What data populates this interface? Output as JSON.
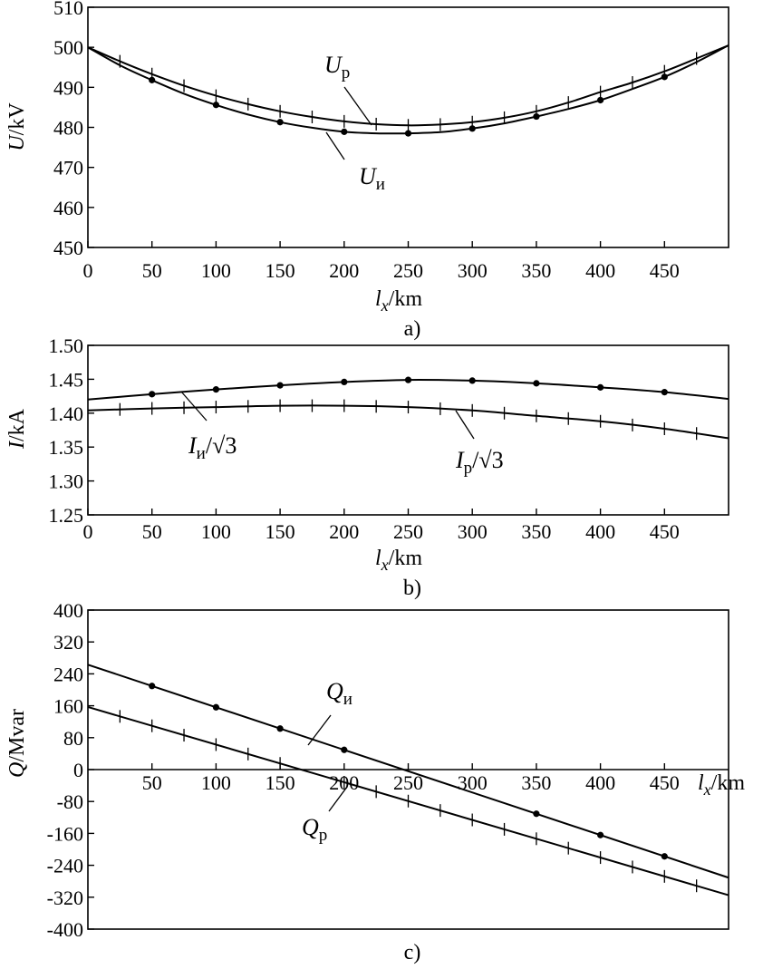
{
  "chart_data": [
    {
      "type": "line",
      "panel_label": "a)",
      "xlabel": "l_x/km",
      "xlabel_main": "l",
      "xlabel_sub": "x",
      "xlabel_unit": "/km",
      "ylabel": "U/kV",
      "xlim": [
        0,
        500
      ],
      "ylim": [
        450,
        510
      ],
      "xticks": [
        0,
        50,
        100,
        150,
        200,
        250,
        300,
        350,
        400,
        450
      ],
      "yticks": [
        450,
        460,
        470,
        480,
        490,
        500,
        510
      ],
      "grid": false,
      "series": [
        {
          "name": "U_р",
          "label_main": "U",
          "label_sub": "р",
          "marker": "tick",
          "x": [
            0,
            25,
            50,
            75,
            100,
            125,
            150,
            175,
            200,
            225,
            250,
            275,
            300,
            325,
            350,
            375,
            400,
            425,
            450,
            475,
            500
          ],
          "y": [
            500.0,
            496.5,
            493.3,
            490.4,
            487.9,
            485.8,
            484.0,
            482.6,
            481.5,
            480.8,
            480.5,
            480.7,
            481.3,
            482.4,
            484.0,
            486.2,
            488.8,
            491.2,
            494.0,
            497.2,
            500.5
          ],
          "markers_x": [
            25,
            50,
            75,
            100,
            125,
            150,
            175,
            200,
            225,
            250,
            275,
            300,
            325,
            350,
            375,
            400,
            425,
            450,
            475
          ]
        },
        {
          "name": "U_и",
          "label_main": "U",
          "label_sub": "и",
          "marker": "dot",
          "x": [
            0,
            25,
            50,
            75,
            100,
            125,
            150,
            175,
            200,
            225,
            250,
            275,
            300,
            325,
            350,
            375,
            400,
            425,
            450,
            475,
            500
          ],
          "y": [
            500.0,
            495.5,
            491.8,
            488.4,
            485.6,
            483.2,
            481.3,
            479.9,
            478.9,
            478.5,
            478.5,
            478.8,
            479.7,
            481.0,
            482.7,
            484.6,
            486.8,
            489.6,
            492.6,
            496.3,
            500.5
          ],
          "markers_x": [
            50,
            100,
            150,
            200,
            250,
            300,
            350,
            400,
            450
          ]
        }
      ]
    },
    {
      "type": "line",
      "panel_label": "b)",
      "xlabel": "l_x/km",
      "xlabel_main": "l",
      "xlabel_sub": "x",
      "xlabel_unit": "/km",
      "ylabel": "I/kA",
      "xlim": [
        0,
        500
      ],
      "ylim": [
        1.25,
        1.5
      ],
      "xticks": [
        0,
        50,
        100,
        150,
        200,
        250,
        300,
        350,
        400,
        450
      ],
      "yticks": [
        1.25,
        1.3,
        1.35,
        1.4,
        1.45,
        1.5
      ],
      "ytick_labels": [
        "1.25",
        "1.30",
        "1.35",
        "1.40",
        "1.45",
        "1.50"
      ],
      "grid": false,
      "series": [
        {
          "name": "I_и/√3",
          "label_main": "I",
          "label_sub": "и",
          "label_tail": "/√3",
          "marker": "dot",
          "x": [
            0,
            50,
            100,
            150,
            200,
            250,
            300,
            350,
            400,
            450,
            500
          ],
          "y": [
            1.42,
            1.428,
            1.435,
            1.441,
            1.446,
            1.449,
            1.448,
            1.444,
            1.438,
            1.431,
            1.421
          ],
          "markers_x": [
            50,
            100,
            150,
            200,
            250,
            300,
            350,
            400,
            450
          ]
        },
        {
          "name": "I_р/√3",
          "label_main": "I",
          "label_sub": "р",
          "label_tail": "/√3",
          "marker": "tick",
          "x": [
            0,
            50,
            100,
            150,
            200,
            250,
            300,
            350,
            400,
            450,
            500
          ],
          "y": [
            1.404,
            1.407,
            1.409,
            1.411,
            1.411,
            1.409,
            1.404,
            1.396,
            1.388,
            1.377,
            1.363
          ],
          "markers_x": [
            25,
            50,
            75,
            100,
            125,
            150,
            175,
            200,
            225,
            250,
            275,
            300,
            325,
            350,
            375,
            400,
            425,
            450,
            475
          ]
        }
      ]
    },
    {
      "type": "line",
      "panel_label": "c)",
      "xlabel": "l_x/km",
      "xlabel_main": "l",
      "xlabel_sub": "x",
      "xlabel_unit": "/km",
      "ylabel": "Q/Mvar",
      "xlim": [
        0,
        500
      ],
      "ylim": [
        -400,
        400
      ],
      "xticks": [
        50,
        100,
        150,
        200,
        250,
        300,
        350,
        400,
        450
      ],
      "yticks": [
        -400,
        -320,
        -240,
        -160,
        -80,
        0,
        80,
        160,
        240,
        320,
        400
      ],
      "grid": false,
      "series": [
        {
          "name": "Q_и",
          "label_main": "Q",
          "label_sub": "и",
          "marker": "dot",
          "x": [
            0,
            500
          ],
          "y": [
            263,
            -271
          ],
          "markers_x": [
            50,
            100,
            150,
            200,
            350,
            400,
            450
          ]
        },
        {
          "name": "Q_р",
          "label_main": "Q",
          "label_sub": "р",
          "marker": "tick",
          "x": [
            0,
            500
          ],
          "y": [
            157,
            -315
          ],
          "markers_x": [
            25,
            50,
            75,
            100,
            125,
            150,
            200,
            225,
            250,
            275,
            300,
            325,
            350,
            375,
            400,
            425,
            450,
            475
          ]
        }
      ]
    }
  ]
}
